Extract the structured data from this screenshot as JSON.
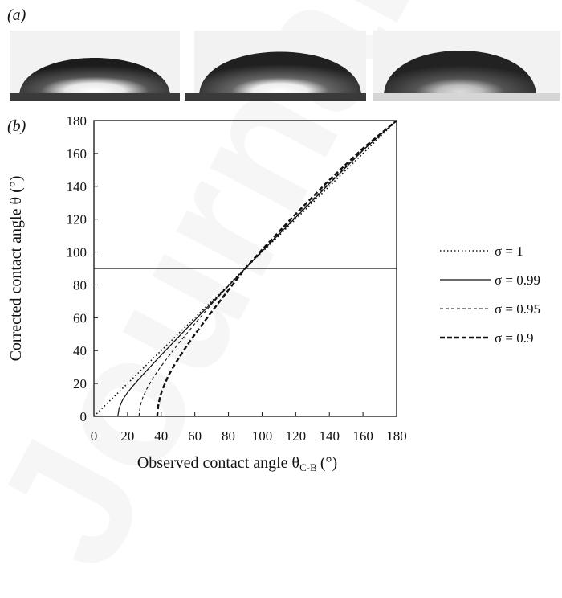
{
  "panels": {
    "a_label": "(a)",
    "b_label": "(b)"
  },
  "photos": {
    "count": 3,
    "substrate_color": "#3a3a3a",
    "drop_colors": [
      "#2a2a2a",
      "#555555",
      "#d9d9d9"
    ]
  },
  "chart_data": {
    "type": "line",
    "title": "",
    "xlabel_main": "Observed contact angle θ",
    "xlabel_sub": "C-B",
    "xlabel_unit": "(°)",
    "ylabel": "Corrected contact angle θ (°)",
    "xlim": [
      0,
      180
    ],
    "ylim": [
      0,
      180
    ],
    "xticks": [
      "0",
      "20",
      "40",
      "60",
      "80",
      "100",
      "120",
      "140",
      "160",
      "180"
    ],
    "yticks": [
      "0",
      "20",
      "40",
      "60",
      "80",
      "100",
      "120",
      "140",
      "160",
      "180"
    ],
    "grid": false,
    "reference_line": {
      "y": 90
    },
    "legend_position": "right",
    "series": [
      {
        "name": "σ = 1",
        "style": "dotted",
        "x": [
          0,
          20,
          40,
          60,
          80,
          100,
          120,
          140,
          160,
          180
        ],
        "y": [
          0,
          20,
          40,
          60,
          80,
          100,
          120,
          140,
          160,
          180
        ]
      },
      {
        "name": "σ = 0.99",
        "style": "solid",
        "x": [
          14.2,
          15,
          17,
          20,
          25,
          30,
          40,
          50,
          60,
          70,
          80,
          90,
          100,
          120,
          140,
          160,
          180
        ],
        "y": [
          0,
          5,
          9.9,
          14.6,
          20.7,
          26.3,
          37.3,
          48.0,
          58.6,
          69.1,
          79.6,
          90,
          100.4,
          121,
          141.5,
          161.8,
          180
        ]
      },
      {
        "name": "σ = 0.95",
        "style": "dashed-thin",
        "x": [
          26.8,
          27.5,
          29,
          31,
          35,
          40,
          50,
          60,
          70,
          80,
          90,
          100,
          120,
          140,
          160,
          180
        ],
        "y": [
          0,
          6.1,
          11.2,
          15.9,
          23.2,
          30.6,
          43.9,
          56.4,
          68.4,
          79.3,
          90,
          100.7,
          121.6,
          142.2,
          162.1,
          180
        ]
      },
      {
        "name": "σ = 0.9",
        "style": "dashed-bold",
        "x": [
          37.6,
          38.2,
          39.5,
          41,
          44,
          48,
          55,
          60,
          70,
          80,
          90,
          100,
          120,
          140,
          160,
          180
        ],
        "y": [
          0,
          6.2,
          12.4,
          17.0,
          24.2,
          31.5,
          42.6,
          49.9,
          63.6,
          76.9,
          90,
          101.4,
          123.1,
          143.8,
          163.1,
          180
        ]
      }
    ]
  }
}
